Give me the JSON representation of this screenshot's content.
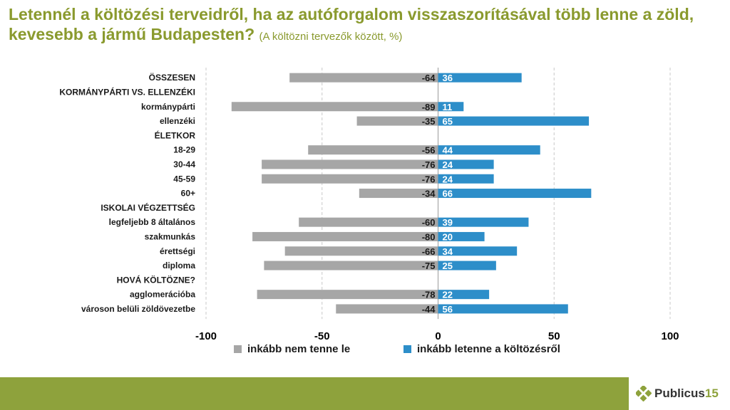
{
  "header": {
    "title": "Letennél a költözési terveidről, ha az autóforgalom visszaszorításával több lenne a zöld, kevesebb a jármű Budapesten?",
    "subtitle": "(A költözni tervezők között, %)"
  },
  "colors": {
    "negative": "#a6a6a6",
    "positive": "#2d8ec9",
    "accent": "#8ea23c",
    "label": "#1a1a1a"
  },
  "chart_data": {
    "type": "bar",
    "orientation": "horizontal-diverging",
    "xlim": [
      -100,
      100
    ],
    "xticks": [
      "-100",
      "-50",
      "0",
      "50",
      "100"
    ],
    "xtick_values": [
      -100,
      -50,
      0,
      50,
      100
    ],
    "categories": [
      "ÖSSZESEN",
      "KORMÁNYPÁRTI VS. ELLENZÉKI",
      "kormánypárti",
      "ellenzéki",
      "ÉLETKOR",
      "18-29",
      "30-44",
      "45-59",
      "60+",
      "ISKOLAI VÉGZETTSÉG",
      "legfeljebb 8 általános",
      "szakmunkás",
      "érettségi",
      "diploma",
      "HOVÁ KÖLTÖZNE?",
      "agglomerációba",
      "városon belüli zöldövezetbe"
    ],
    "series": [
      {
        "name": "inkább nem tenne le",
        "values": [
          -64,
          null,
          -89,
          -35,
          null,
          -56,
          -76,
          -76,
          -34,
          null,
          -60,
          -80,
          -66,
          -75,
          null,
          -78,
          -44
        ]
      },
      {
        "name": "inkább letenne a költözésről",
        "values": [
          36,
          null,
          11,
          65,
          null,
          44,
          24,
          24,
          66,
          null,
          39,
          20,
          34,
          25,
          null,
          22,
          56
        ]
      }
    ],
    "gridlines": "dashed-vertical"
  },
  "legend": {
    "neg_label": "inkább nem tenne le",
    "pos_label": "inkább letenne a költözésről"
  },
  "logo": {
    "name": "Publicus",
    "number": "15"
  }
}
